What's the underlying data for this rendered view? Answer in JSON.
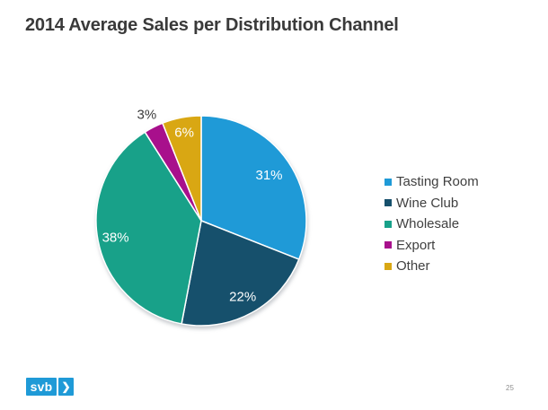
{
  "title": "2014 Average Sales per Distribution Channel",
  "chart_data": {
    "type": "pie",
    "title": "2014 Average Sales per Distribution Channel",
    "start_angle_deg": 0,
    "direction": "clockwise",
    "legend_position": "right",
    "slices": [
      {
        "label": "Tasting Room",
        "value": 31,
        "pct_label": "31%",
        "color": "#1f9ad7",
        "label_color": "#ffffff",
        "label_inside": true,
        "label_radius_frac": 0.78
      },
      {
        "label": "Wine Club",
        "value": 22,
        "pct_label": "22%",
        "color": "#16506c",
        "label_color": "#ffffff",
        "label_inside": true,
        "label_radius_frac": 0.82
      },
      {
        "label": "Wholesale",
        "value": 38,
        "pct_label": "38%",
        "color": "#18a189",
        "label_color": "#ffffff",
        "label_inside": true,
        "label_radius_frac": 0.83
      },
      {
        "label": "Export",
        "value": 3,
        "pct_label": "3%",
        "color": "#a8108c",
        "label_color": "#3a3a3a",
        "label_inside": false,
        "label_radius_frac": 1.14
      },
      {
        "label": "Other",
        "value": 6,
        "pct_label": "6%",
        "color": "#d9a713",
        "label_color": "#ffffff",
        "label_inside": true,
        "label_radius_frac": 0.86
      }
    ]
  },
  "footer": {
    "logo_text": "svb",
    "logo_chevron": "❯",
    "logo_color": "#1f9ad7",
    "page_number": "25"
  },
  "colors": {
    "title_text": "#3a3a3a",
    "legend_text": "#404040",
    "background": "#ffffff"
  }
}
